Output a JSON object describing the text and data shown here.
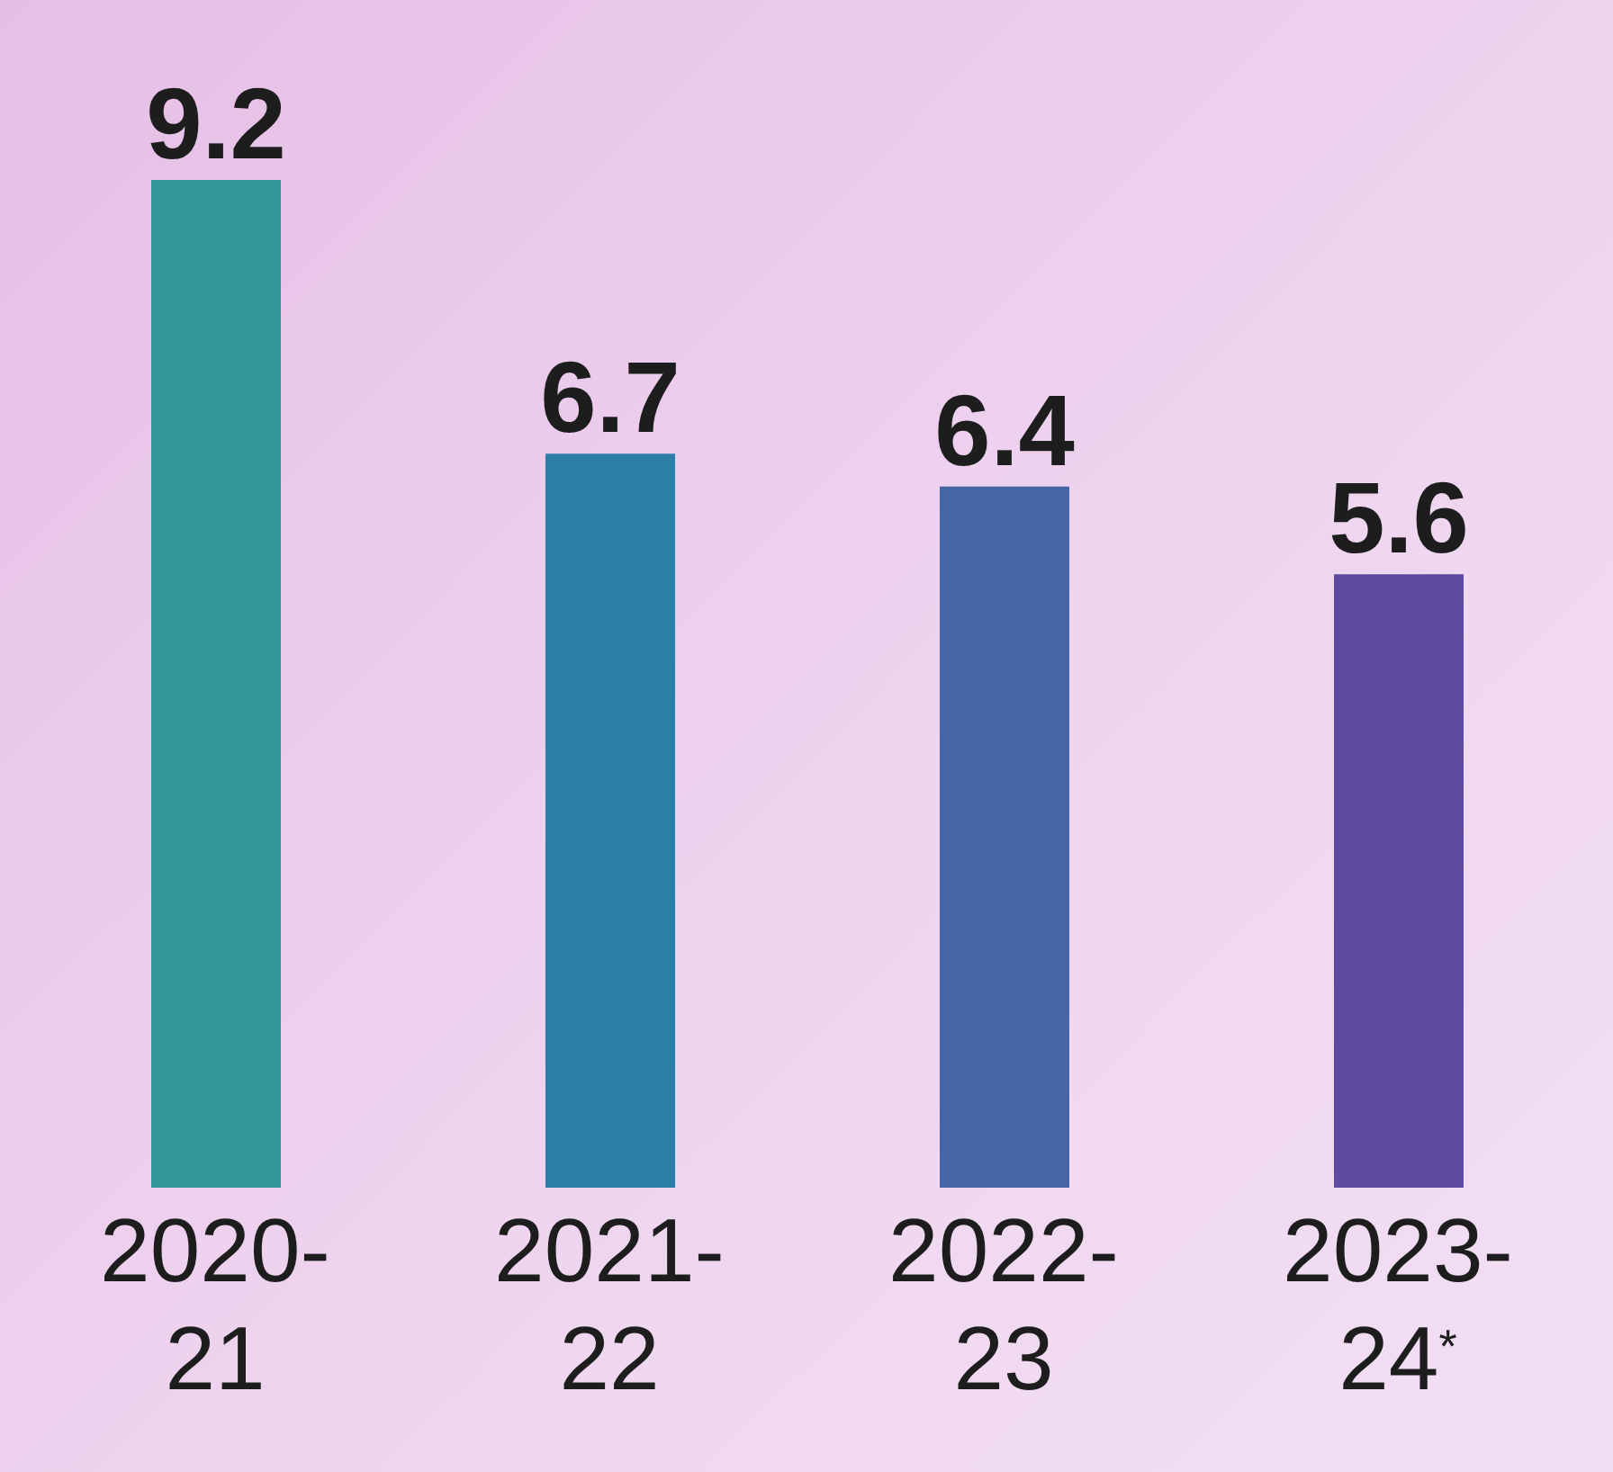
{
  "chart_data": {
    "type": "bar",
    "categories": [
      "2020-21",
      "2021-22",
      "2022-23",
      "2023-24$^{*}$"
    ],
    "values": [
      9.2,
      6.7,
      6.4,
      5.6
    ],
    "colors": [
      "#34959a",
      "#2a7ea8",
      "#4566a4",
      "#5e4aa0"
    ],
    "data_labels": true,
    "legend": false,
    "grid": false
  }
}
